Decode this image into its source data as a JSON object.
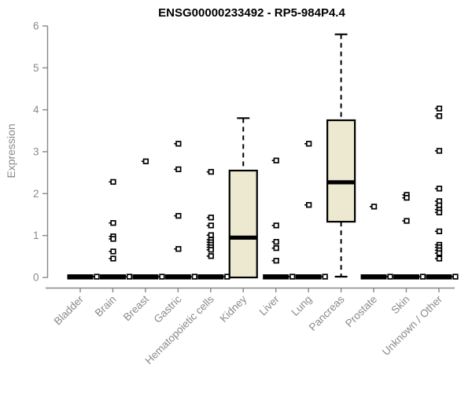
{
  "chart_data": {
    "type": "boxplot",
    "title": "ENSG00000233492 - RP5-984P4.4",
    "ylabel": "Expression",
    "xlabel": "",
    "ylim": [
      0,
      6
    ],
    "yticks": [
      0,
      1,
      2,
      3,
      4,
      5,
      6
    ],
    "grid": false,
    "legend": "none",
    "categories": [
      "Bladder",
      "Brain",
      "Breast",
      "Gastric",
      "Hematopoietic cells",
      "Kidney",
      "Liver",
      "Lung",
      "Pancreas",
      "Prostate",
      "Skin",
      "Unknown / Other"
    ],
    "boxes": [
      {
        "category": "Bladder",
        "q1": 0,
        "median": 0,
        "q3": 0,
        "whisker_low": 0,
        "whisker_high": 0,
        "outliers": []
      },
      {
        "category": "Brain",
        "q1": 0,
        "median": 0,
        "q3": 0,
        "whisker_low": 0,
        "whisker_high": 0,
        "outliers": [
          2.28,
          1.3,
          0.98,
          0.92,
          0.62,
          0.45
        ]
      },
      {
        "category": "Breast",
        "q1": 0,
        "median": 0,
        "q3": 0,
        "whisker_low": 0,
        "whisker_high": 0,
        "outliers": [
          2.77
        ]
      },
      {
        "category": "Gastric",
        "q1": 0,
        "median": 0,
        "q3": 0,
        "whisker_low": 0,
        "whisker_high": 0,
        "outliers": [
          3.19,
          2.58,
          1.47,
          0.68
        ]
      },
      {
        "category": "Hematopoietic cells",
        "q1": 0,
        "median": 0,
        "q3": 0,
        "whisker_low": 0,
        "whisker_high": 0,
        "outliers": [
          2.52,
          1.43,
          1.24,
          1.01,
          0.9,
          0.84,
          0.78,
          0.72,
          0.66,
          0.51
        ]
      },
      {
        "category": "Kidney",
        "q1": 0,
        "median": 0.95,
        "q3": 2.55,
        "whisker_low": 0,
        "whisker_high": 3.8,
        "outliers": []
      },
      {
        "category": "Liver",
        "q1": 0,
        "median": 0,
        "q3": 0,
        "whisker_low": 0,
        "whisker_high": 0,
        "outliers": [
          2.79,
          1.24,
          0.85,
          0.7,
          0.4
        ]
      },
      {
        "category": "Lung",
        "q1": 0,
        "median": 0,
        "q3": 0,
        "whisker_low": 0,
        "whisker_high": 0,
        "outliers": [
          3.19,
          1.73
        ]
      },
      {
        "category": "Pancreas",
        "q1": 1.33,
        "median": 2.27,
        "q3": 3.75,
        "whisker_low": 0,
        "whisker_high": 5.8,
        "outliers": []
      },
      {
        "category": "Prostate",
        "q1": 0,
        "median": 0,
        "q3": 0,
        "whisker_low": 0,
        "whisker_high": 0,
        "outliers": [
          1.69
        ]
      },
      {
        "category": "Skin",
        "q1": 0,
        "median": 0,
        "q3": 0,
        "whisker_low": 0,
        "whisker_high": 0,
        "outliers": [
          1.97,
          1.9,
          1.35
        ]
      },
      {
        "category": "Unknown / Other",
        "q1": 0,
        "median": 0,
        "q3": 0,
        "whisker_low": 0,
        "whisker_high": 0,
        "outliers": [
          4.03,
          3.85,
          3.02,
          2.12,
          1.82,
          1.72,
          1.62,
          1.55,
          1.1,
          0.78,
          0.72,
          0.65,
          0.58,
          0.45
        ]
      }
    ],
    "colors": {
      "box_fill": "#ede8d0",
      "box_stroke": "#000000",
      "median": "#000000",
      "axis": "#878787",
      "tick_label": "#8a8a8a",
      "title": "#000000",
      "background": "#ffffff"
    }
  }
}
